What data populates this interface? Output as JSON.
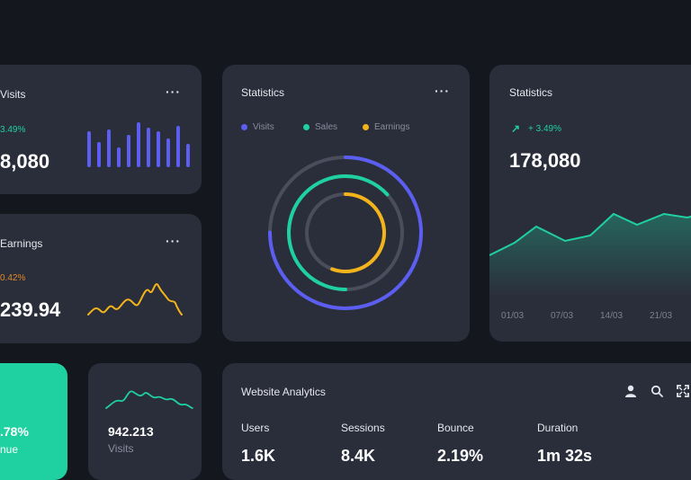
{
  "visits_card": {
    "title": "Visits",
    "change": "3.49%",
    "value": "8,080",
    "menu": "···",
    "change_color": "#1fd1a0",
    "bar_color": "#5b5ef0"
  },
  "earnings_card": {
    "title": "Earnings",
    "change": "0.42%",
    "value": "239.94",
    "menu": "···",
    "change_color": "#e08a2a",
    "line_color": "#f3b41b"
  },
  "statistics_ring_card": {
    "title": "Statistics",
    "menu": "···",
    "legend": [
      {
        "label": "Visits",
        "color": "#5b5ef0"
      },
      {
        "label": "Sales",
        "color": "#1fd1a0"
      },
      {
        "label": "Earnings",
        "color": "#f3b41b"
      }
    ]
  },
  "statistics_line_card": {
    "title": "Statistics",
    "change": "+ 3.49%",
    "value": "178,080",
    "x_ticks": [
      "01/03",
      "07/03",
      "14/03",
      "21/03"
    ],
    "change_color": "#1fd1a0",
    "line_color": "#1fd1a0"
  },
  "green_card": {
    "value": ".78%",
    "label": "nue",
    "bg_color": "#1fd1a0"
  },
  "visits_small_card": {
    "value": "942.213",
    "label": "Visits",
    "line_color": "#1fd1a0"
  },
  "analytics_card": {
    "title": "Website Analytics",
    "icons": [
      "user-icon",
      "search-icon",
      "expand-icon"
    ],
    "metrics": [
      {
        "label": "Users",
        "value": "1.6K"
      },
      {
        "label": "Sessions",
        "value": "8.4K"
      },
      {
        "label": "Bounce",
        "value": "2.19%"
      },
      {
        "label": "Duration",
        "value": "1m 32s"
      }
    ]
  }
}
